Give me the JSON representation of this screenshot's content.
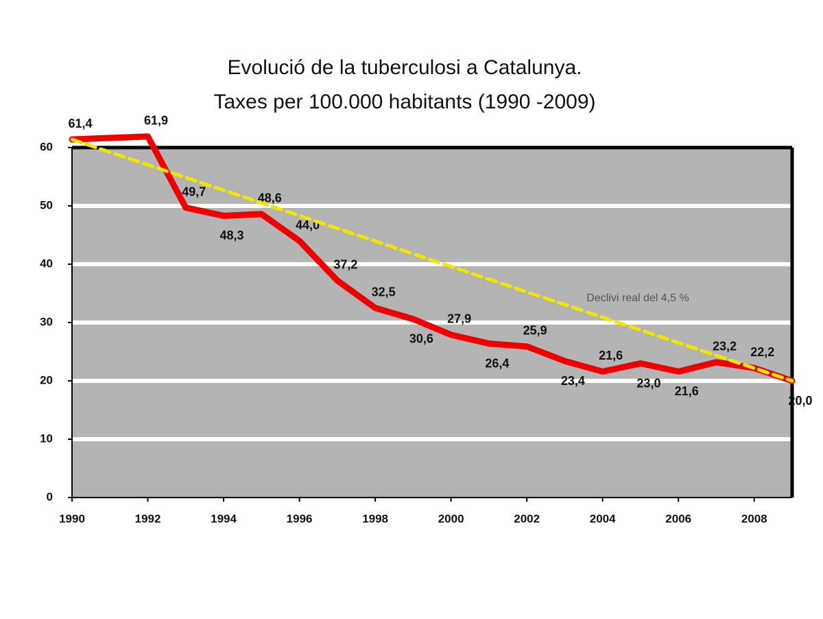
{
  "chart_data": {
    "type": "line",
    "title": "Evolució de la tuberculosi a Catalunya.",
    "subtitle": "Taxes per 100.000 habitants (1990 -2009)",
    "annotation": "Declivi real del 4,5 %",
    "xlim": [
      1990,
      2009
    ],
    "xticks": [
      1990,
      1992,
      1994,
      1996,
      1998,
      2000,
      2002,
      2004,
      2006,
      2008
    ],
    "ylim": [
      0,
      60
    ],
    "yticks": [
      0,
      10,
      20,
      30,
      40,
      50,
      60
    ],
    "grid": true,
    "series": [
      {
        "color": "#ee0000",
        "style": "solid",
        "x": [
          1990,
          1992,
          1993,
          1994,
          1995,
          1996,
          1997,
          1998,
          1999,
          2000,
          2001,
          2002,
          2003,
          2004,
          2005,
          2006,
          2007,
          2008,
          2009
        ],
        "values": [
          61.4,
          61.9,
          49.7,
          48.3,
          48.6,
          44.0,
          37.2,
          32.5,
          30.6,
          27.9,
          26.4,
          25.9,
          23.4,
          21.6,
          23.0,
          21.6,
          23.2,
          22.2,
          20.0
        ],
        "value_labels": [
          "61,4",
          "61,9",
          "49,7",
          "48,3",
          "48,6",
          "44,0",
          "37,2",
          "32,5",
          "30,6",
          "27,9",
          "26,4",
          "25,9",
          "23,4",
          "21,6",
          "23,0",
          "21,6",
          "23,2",
          "22,2",
          "20,0"
        ]
      },
      {
        "color": "#f2e600",
        "style": "dashed",
        "x": [
          1990,
          2009
        ],
        "values": [
          61.4,
          20.0
        ]
      }
    ]
  }
}
